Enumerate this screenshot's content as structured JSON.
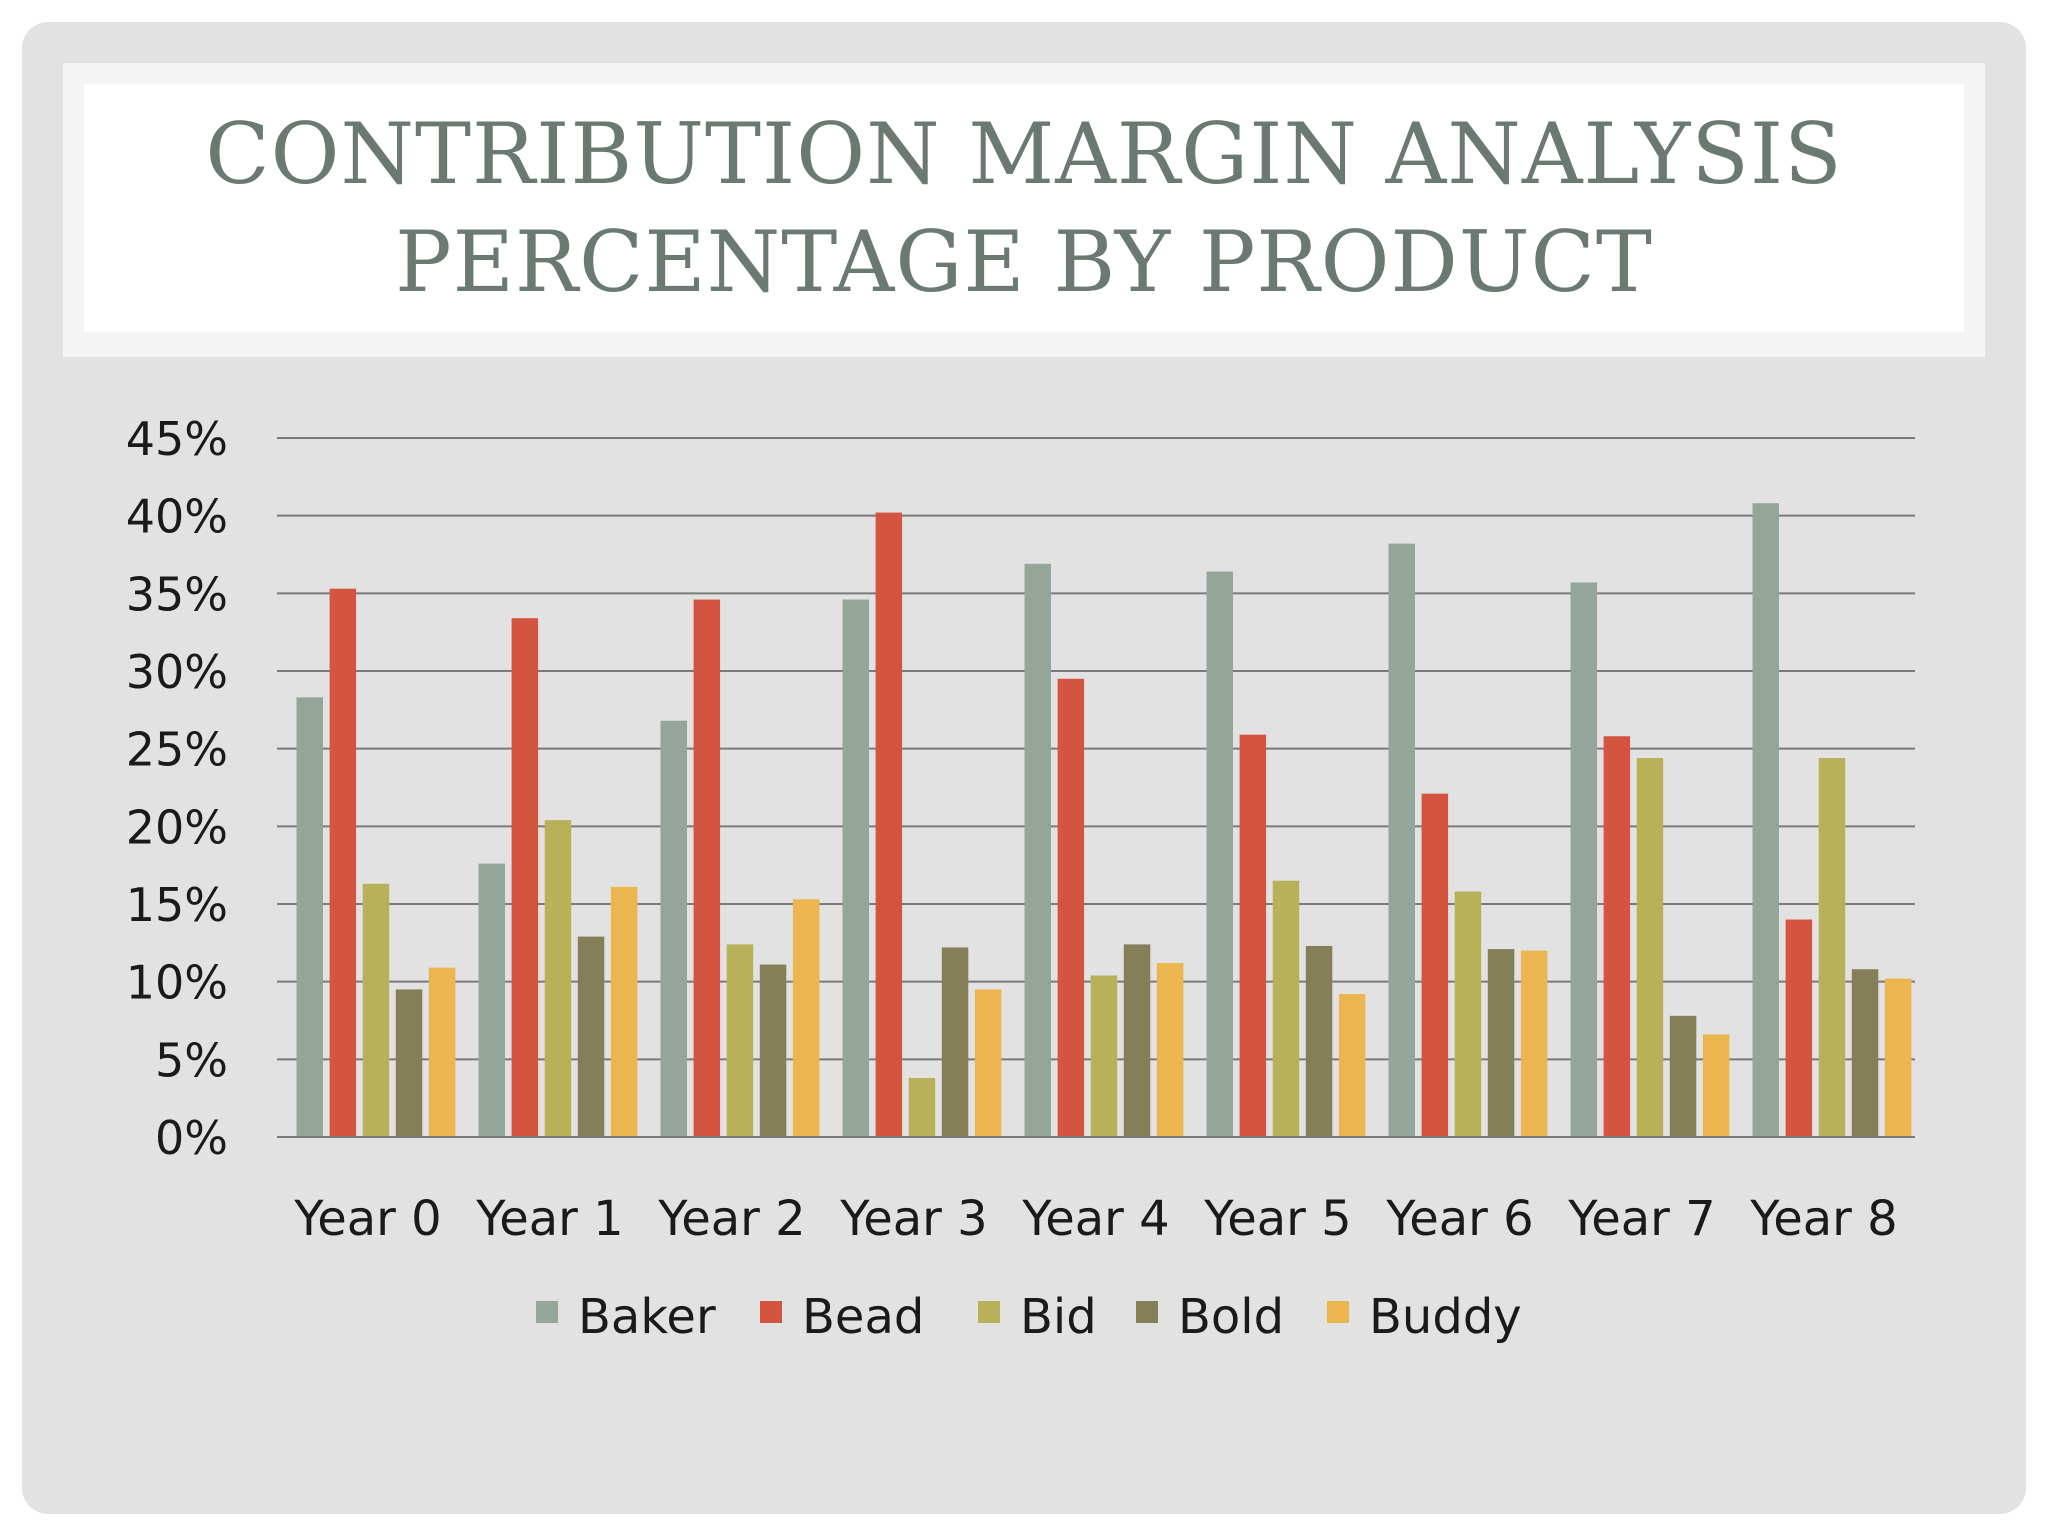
{
  "title": {
    "line1": "CONTRIBUTION MARGIN ANALYSIS",
    "line2": "PERCENTAGE BY PRODUCT"
  },
  "colors": {
    "slide_background": "#e3e2e2",
    "title_text": "#6b7a70",
    "gridline": "#7a7a7a"
  },
  "chart_data": {
    "type": "bar",
    "title": "CONTRIBUTION MARGIN ANALYSIS PERCENTAGE BY PRODUCT",
    "xlabel": "",
    "ylabel": "",
    "ylim": [
      0,
      45
    ],
    "yticks": [
      0,
      5,
      10,
      15,
      20,
      25,
      30,
      35,
      40,
      45
    ],
    "ytick_labels": [
      "0%",
      "5%",
      "10%",
      "15%",
      "20%",
      "25%",
      "30%",
      "35%",
      "40%",
      "45%"
    ],
    "grid": true,
    "legend_position": "bottom",
    "categories": [
      "Year 0",
      "Year 1",
      "Year 2",
      "Year 3",
      "Year 4",
      "Year 5",
      "Year 6",
      "Year 7",
      "Year 8"
    ],
    "series": [
      {
        "name": "Baker",
        "color": "#94a59a",
        "values": [
          28.3,
          17.6,
          26.8,
          34.6,
          36.9,
          36.4,
          38.2,
          35.7,
          40.8
        ]
      },
      {
        "name": "Bead",
        "color": "#d3553f",
        "values": [
          35.3,
          33.4,
          34.6,
          40.2,
          29.5,
          25.9,
          22.1,
          25.8,
          14.0
        ]
      },
      {
        "name": "Bid",
        "color": "#b9b15a",
        "values": [
          16.3,
          20.4,
          12.4,
          3.8,
          10.4,
          16.5,
          15.8,
          24.4,
          24.4
        ]
      },
      {
        "name": "Bold",
        "color": "#857f59",
        "values": [
          9.5,
          12.9,
          11.1,
          12.2,
          12.4,
          12.3,
          12.1,
          7.8,
          10.8
        ]
      },
      {
        "name": "Buddy",
        "color": "#ebb550",
        "values": [
          10.9,
          16.1,
          15.3,
          9.5,
          11.2,
          9.2,
          12.0,
          6.6,
          10.2
        ]
      }
    ]
  }
}
